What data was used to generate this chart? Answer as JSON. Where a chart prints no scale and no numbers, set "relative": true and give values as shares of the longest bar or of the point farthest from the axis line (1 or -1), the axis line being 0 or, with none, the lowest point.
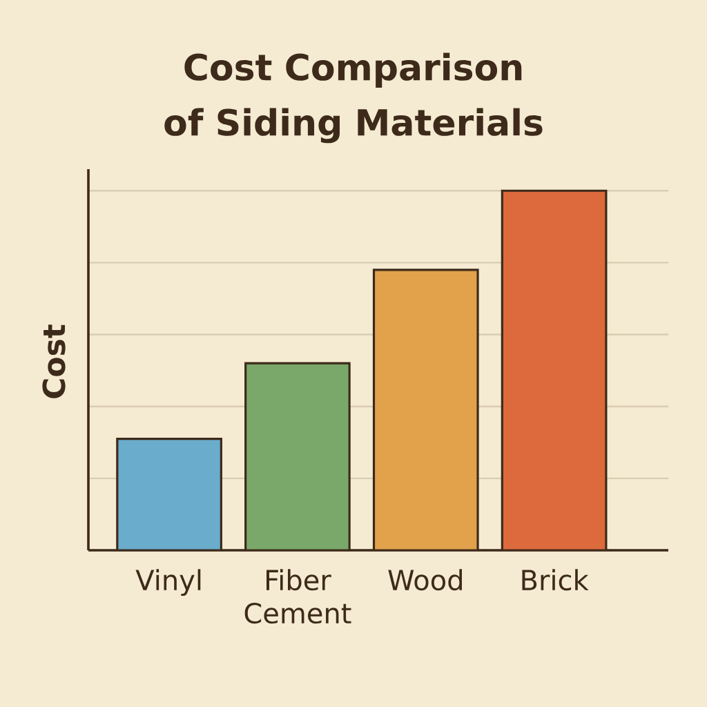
{
  "chart_data": {
    "type": "bar",
    "title": "Cost Comparison of Siding Materials",
    "ylabel": "Cost",
    "categories": [
      "Vinyl",
      "Fiber Cement",
      "Wood",
      "Brick"
    ],
    "values": [
      0.31,
      0.52,
      0.78,
      1
    ],
    "colors": [
      "#6aaccb",
      "#7aa86a",
      "#e2a24c",
      "#dc6a3c"
    ],
    "relative": true,
    "grid": "y"
  }
}
